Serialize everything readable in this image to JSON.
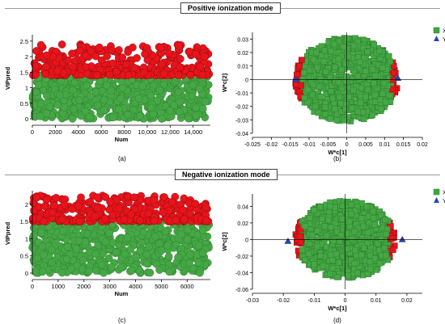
{
  "modes": {
    "positive": "Positive ionization mode",
    "negative": "Negative ionization mode"
  },
  "colors": {
    "high_vip": "#e8141b",
    "low_vip": "#45a845",
    "x_marker": "#3da83d",
    "y_marker": "#2b45b8"
  },
  "chart_data": [
    {
      "id": "a",
      "caption": "(a)",
      "type": "scatter",
      "title": "",
      "xlabel": "Num",
      "ylabel": "VIPpred",
      "xlim": [
        0,
        15500
      ],
      "ylim": [
        0,
        2.6
      ],
      "x_ticks": [
        0,
        2000,
        4000,
        6000,
        8000,
        10000,
        12000,
        14000
      ],
      "x_tick_labels": [
        "0",
        "2000",
        "4000",
        "6000",
        "8000",
        "10,000",
        "12,000",
        "14,000"
      ],
      "y_ticks": [
        0,
        0.5,
        1,
        1.5,
        2,
        2.5
      ],
      "y_tick_labels": [
        "0",
        "0.5",
        "1",
        "1.5",
        "2",
        "2.5"
      ],
      "series": [
        {
          "color": "#e8141b",
          "y_range": [
            1.4,
            2.4
          ],
          "x_range": [
            0,
            15400
          ]
        },
        {
          "color": "#45a845",
          "y_range": [
            0,
            1.4
          ],
          "x_range": [
            0,
            15400
          ]
        }
      ]
    },
    {
      "id": "b",
      "caption": "(b)",
      "type": "scatter",
      "title": "",
      "xlabel": "W*c[1]",
      "ylabel": "W*c[2]",
      "xlim": [
        -0.025,
        0.02
      ],
      "ylim": [
        -0.04,
        0.035
      ],
      "x_ticks": [
        -0.025,
        -0.02,
        -0.015,
        -0.01,
        -0.005,
        0,
        0.005,
        0.01,
        0.015,
        0.02
      ],
      "x_tick_labels": [
        "-0.025",
        "-0.02",
        "-0.015",
        "-0.01",
        "-0.005",
        "0",
        "0.005",
        "0.01",
        "0.015",
        "0.02"
      ],
      "y_ticks": [
        -0.04,
        -0.03,
        -0.02,
        -0.01,
        0,
        0.01,
        0.02,
        0.03
      ],
      "y_tick_labels": [
        "-0.04",
        "-0.03",
        "-0.02",
        "-0.01",
        "0",
        "0.01",
        "0.02",
        "0.03"
      ],
      "legend": [
        "X",
        "Y"
      ],
      "y_points": [
        [
          -0.0135,
          0.0
        ],
        [
          0.0135,
          0.001
        ]
      ]
    },
    {
      "id": "c",
      "caption": "(c)",
      "type": "scatter",
      "title": "",
      "xlabel": "Num",
      "ylabel": "VIPpred",
      "xlim": [
        0,
        6900
      ],
      "ylim": [
        0,
        2.3
      ],
      "x_ticks": [
        0,
        1000,
        2000,
        3000,
        4000,
        5000,
        6000
      ],
      "x_tick_labels": [
        "0",
        "1000",
        "2000",
        "3000",
        "4000",
        "5000",
        "6000"
      ],
      "y_ticks": [
        0,
        0.5,
        1,
        1.5,
        2
      ],
      "y_tick_labels": [
        "0",
        "0.5",
        "1",
        "1.5",
        "2"
      ],
      "series": [
        {
          "color": "#e8141b",
          "y_range": [
            1.5,
            2.25
          ],
          "x_range": [
            0,
            6850
          ]
        },
        {
          "color": "#45a845",
          "y_range": [
            0,
            1.5
          ],
          "x_range": [
            0,
            6850
          ]
        }
      ]
    },
    {
      "id": "d",
      "caption": "(d)",
      "type": "scatter",
      "title": "",
      "xlabel": "W*c[1]",
      "ylabel": "W*c[2]",
      "xlim": [
        -0.03,
        0.025
      ],
      "ylim": [
        -0.06,
        0.055
      ],
      "x_ticks": [
        -0.03,
        -0.02,
        -0.01,
        0,
        0.01,
        0.02
      ],
      "x_tick_labels": [
        "-0.03",
        "-0.02",
        "-0.01",
        "0",
        "0.01",
        "0.02"
      ],
      "y_ticks": [
        -0.06,
        -0.04,
        -0.02,
        0,
        0.02,
        0.04
      ],
      "y_tick_labels": [
        "-0.06",
        "-0.04",
        "-0.02",
        "0",
        "0.02",
        "0.04"
      ],
      "legend": [
        "X",
        "Y"
      ],
      "y_points": [
        [
          -0.0185,
          -0.002
        ],
        [
          0.0185,
          0.0
        ]
      ]
    }
  ]
}
